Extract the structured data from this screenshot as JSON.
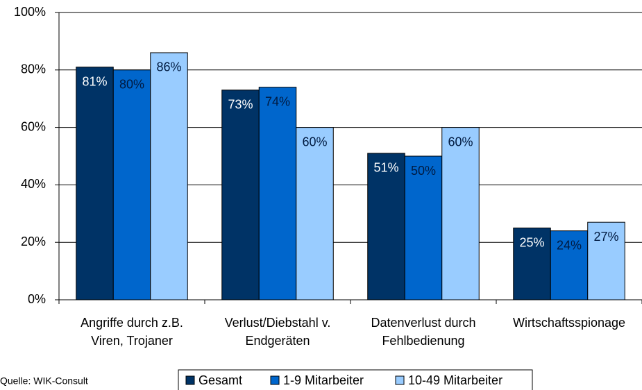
{
  "chart_data": {
    "type": "bar",
    "categories": [
      [
        "Angriffe durch z.B.",
        "Viren, Trojaner"
      ],
      [
        "Verlust/Diebstahl v.",
        "Endgeräten"
      ],
      [
        "Datenverlust durch",
        "Fehlbedienung"
      ],
      [
        "Wirtschaftsspionage"
      ]
    ],
    "series": [
      {
        "name": "Gesamt",
        "color": "#003366",
        "values": [
          81,
          73,
          51,
          25
        ],
        "value_labels": [
          "81%",
          "73%",
          "51%",
          "25%"
        ]
      },
      {
        "name": "1-9 Mitarbeiter",
        "color": "#0066cc",
        "values": [
          80,
          74,
          50,
          24
        ],
        "value_labels": [
          "80%",
          "74%",
          "50%",
          "24%"
        ]
      },
      {
        "name": "10-49 Mitarbeiter",
        "color": "#99ccff",
        "values": [
          86,
          60,
          60,
          27
        ],
        "value_labels": [
          "86%",
          "60%",
          "60%",
          "27%"
        ]
      }
    ],
    "ylim": [
      0,
      100
    ],
    "yticks": [
      {
        "value": 0,
        "label": "0%"
      },
      {
        "value": 20,
        "label": "20%"
      },
      {
        "value": 40,
        "label": "40%"
      },
      {
        "value": 60,
        "label": "60%"
      },
      {
        "value": 80,
        "label": "80%"
      },
      {
        "value": 100,
        "label": "100%"
      }
    ],
    "grid": true,
    "source": "Quelle: WIK-Consult"
  }
}
